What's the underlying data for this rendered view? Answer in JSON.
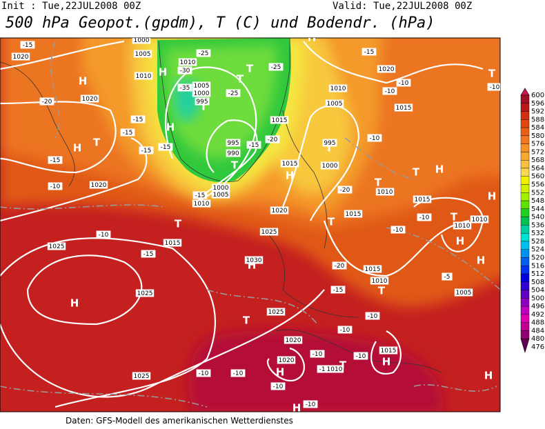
{
  "header": {
    "init": "Init : Tue,22JUL2008 00Z",
    "valid": "Valid: Tue,22JUL2008 00Z",
    "title": "500 hPa Geopot.(gpdm), T (C) und Bodendr. (hPa)"
  },
  "colorbar": {
    "values": [
      600,
      596,
      592,
      588,
      584,
      580,
      576,
      572,
      568,
      564,
      560,
      556,
      552,
      548,
      544,
      540,
      536,
      532,
      528,
      524,
      520,
      516,
      512,
      508,
      504,
      500,
      496,
      492,
      488,
      484,
      480,
      476
    ],
    "colors": [
      "#c8185a",
      "#a01028",
      "#b81818",
      "#d03010",
      "#e04810",
      "#e86018",
      "#f07820",
      "#f89028",
      "#f8a830",
      "#f8c040",
      "#f8d850",
      "#f0f000",
      "#d0f000",
      "#a0f000",
      "#60e000",
      "#20d020",
      "#00c050",
      "#00d0a0",
      "#00e0d0",
      "#00c0f0",
      "#0090f0",
      "#0060f0",
      "#0030f0",
      "#0000e0",
      "#3000d0",
      "#6000c0",
      "#9000c0",
      "#c000c0",
      "#e000b0",
      "#c00090",
      "#900070",
      "#600050"
    ]
  },
  "map_labels": [
    "H",
    "H",
    "H",
    "H",
    "T",
    "T",
    "T",
    "T",
    "T",
    "T",
    "H",
    "H",
    "T",
    "H",
    "T",
    "T",
    "T",
    "T",
    "H",
    "H",
    "T",
    "H",
    "H",
    "T",
    "H",
    "H",
    "H",
    "T",
    "T",
    "H",
    "H",
    "-15",
    "1020",
    "1020",
    "-20",
    "-15",
    "-15",
    "1000",
    "1005",
    "1010",
    "1010",
    "-30",
    "-25",
    "-35",
    "1005",
    "1000",
    "995",
    "-25",
    "-25",
    "1015",
    "-20",
    "995",
    "990",
    "-15",
    "1015",
    "1000",
    "1005",
    "-15",
    "1010",
    "1020",
    "-15",
    "-15",
    "-15",
    "-10",
    "1010",
    "1005",
    "995",
    "1000",
    "-20",
    "1020",
    "1015",
    "1025",
    "-10",
    "-15",
    "1025",
    "1030",
    "1025",
    "1025",
    "1020",
    "-20",
    "-15",
    "1015",
    "1010",
    "-10",
    "-10",
    "-10",
    "1020",
    "1025",
    "-10",
    "-10",
    "1015",
    "-10",
    "-10",
    "1010",
    "-10",
    "-10",
    "1005",
    "-5",
    "-15",
    "1020",
    "-10",
    "-10",
    "1015",
    "-10",
    "1010",
    "1015",
    "1010",
    "1010",
    "-10",
    "-10",
    "-10",
    "1015"
  ],
  "footer": "Daten: GFS-Modell des amerikanischen Wetterdienstes"
}
